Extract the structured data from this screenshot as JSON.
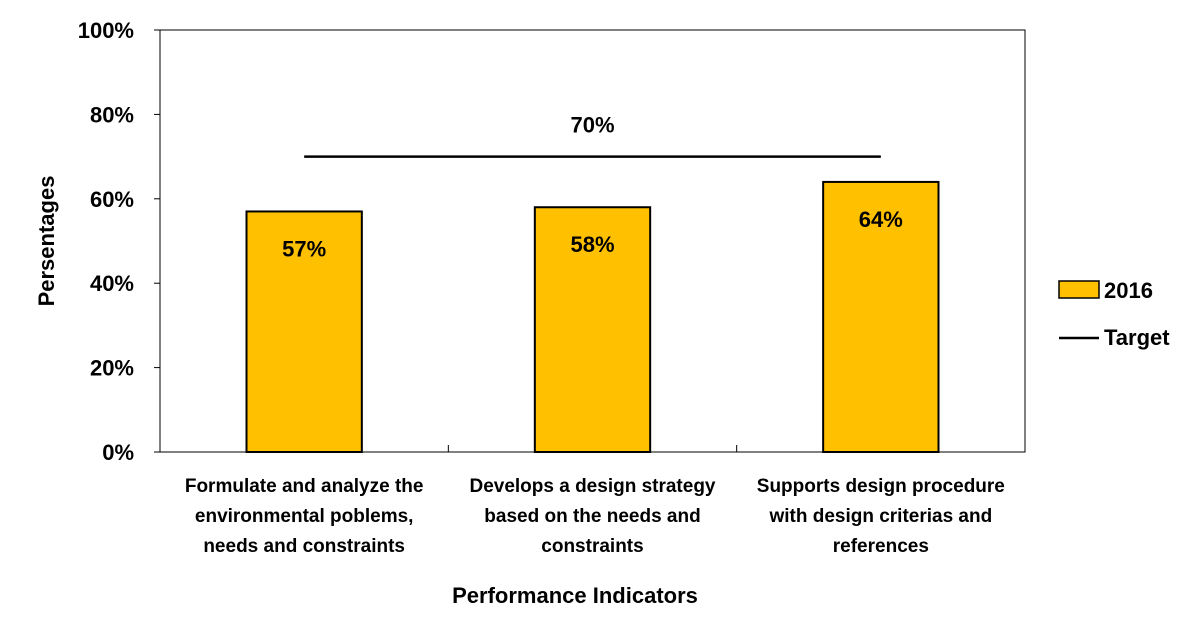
{
  "chart_data": {
    "type": "bar",
    "xlabel": "Performance Indicators",
    "ylabel": "Persentages",
    "ylim": [
      0,
      100
    ],
    "yticks": [
      "0%",
      "20%",
      "40%",
      "60%",
      "80%",
      "100%"
    ],
    "categories": [
      [
        "Formulate and analyze the",
        "environmental poblems,",
        "needs and constraints"
      ],
      [
        "Develops a design strategy",
        "based on the needs and",
        "constraints"
      ],
      [
        "Supports design procedure",
        "with design criterias and",
        "references"
      ]
    ],
    "series": [
      {
        "name": "2016",
        "values": [
          57,
          58,
          64
        ],
        "labels": [
          "57%",
          "58%",
          "64%"
        ],
        "color": "#FFC000"
      }
    ],
    "target": {
      "name": "Target",
      "value": 70,
      "label": "70%",
      "color": "#000000"
    },
    "legend": "right",
    "grid": false
  }
}
